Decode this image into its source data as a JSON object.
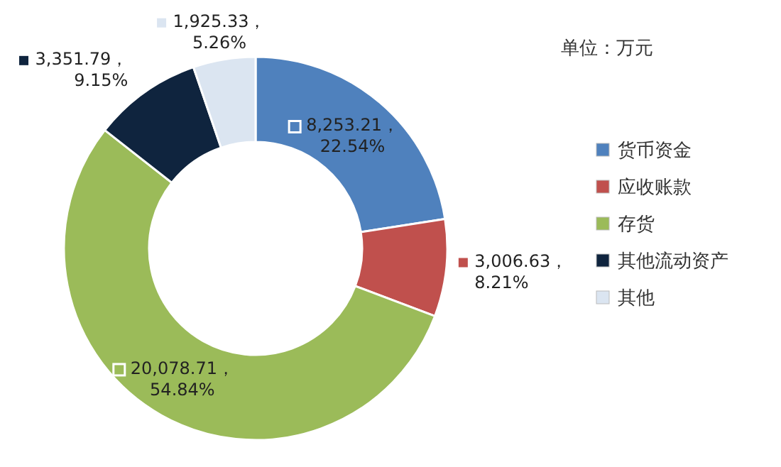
{
  "chart_data": {
    "type": "donut",
    "annotations": [
      "单位：万元"
    ],
    "legend": "right",
    "categories": [
      "货币资金",
      "应收账款",
      "存货",
      "其他流动资产",
      "其他"
    ],
    "values": [
      8253.21,
      3006.63,
      20078.71,
      3351.79,
      1925.33
    ],
    "value_labels": [
      "8,253.21，\n22.54%",
      "3,006.63，\n8.21%",
      "20,078.71，\n54.84%",
      "3,351.79，\n9.15%",
      "1,925.33，\n5.26%"
    ],
    "colors": [
      "#4f81bd",
      "#c0504d",
      "#9bbb59",
      "#0f243e",
      "#dbe5f1"
    ]
  }
}
